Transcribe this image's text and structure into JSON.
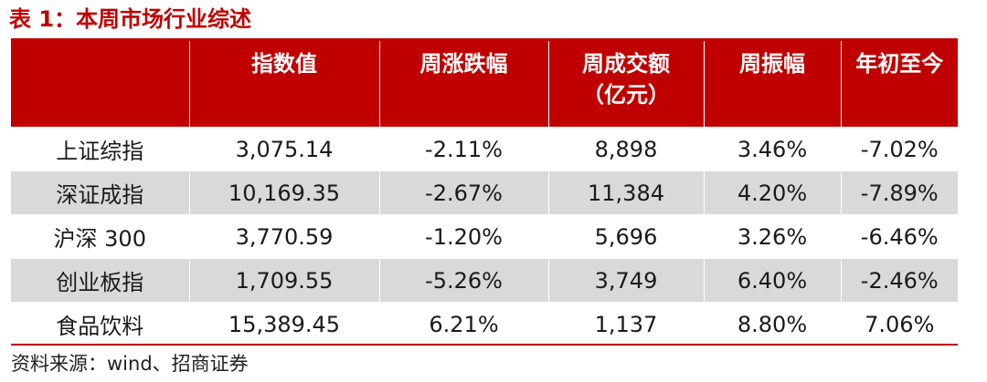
{
  "title": "表 1：本周市场行业综述",
  "headers": [
    {
      "line1": "",
      "line2": ""
    },
    {
      "line1": "指数值",
      "line2": ""
    },
    {
      "line1": "周涨跌幅",
      "line2": ""
    },
    {
      "line1": "周成交额",
      "line2": "（亿元）"
    },
    {
      "line1": "周振幅",
      "line2": ""
    },
    {
      "line1": "年初至今",
      "line2": ""
    }
  ],
  "rows": [
    [
      "上证综指",
      "3,075.14",
      "-2.11%",
      "8,898",
      "3.46%",
      "-7.02%"
    ],
    [
      "深证成指",
      "10,169.35",
      "-2.67%",
      "11,384",
      "4.20%",
      "-7.89%"
    ],
    [
      "沪深 300",
      "3,770.59",
      "-1.20%",
      "5,696",
      "3.26%",
      "-6.46%"
    ],
    [
      "创业板指",
      "1,709.55",
      "-5.26%",
      "3,749",
      "6.40%",
      "-2.46%"
    ],
    [
      "食品饮料",
      "15,389.45",
      "6.21%",
      "1,137",
      "8.80%",
      "7.06%"
    ]
  ],
  "source": "资料来源：wind、招商证券",
  "colors": {
    "accent": "#c00000",
    "row_shade": "#d9d9d9"
  }
}
